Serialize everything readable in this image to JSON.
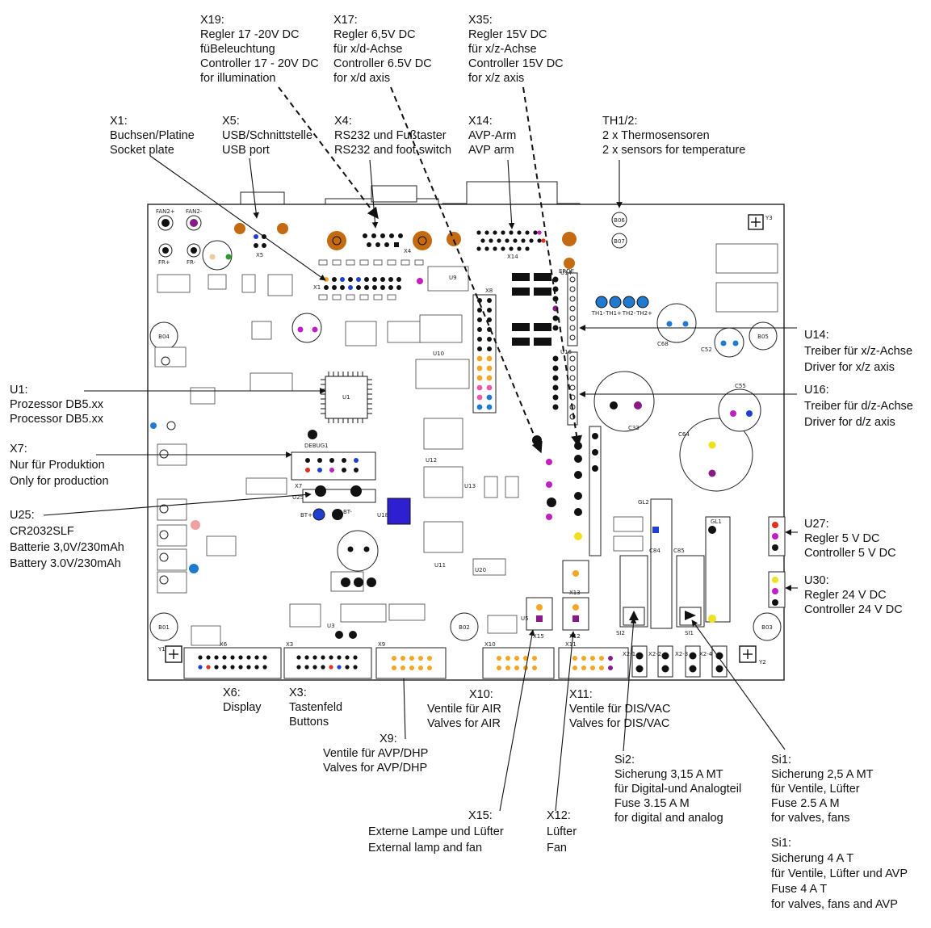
{
  "callouts": {
    "x19": [
      "X19:",
      "Regler 17 -20V DC",
      "füBeleuchtung",
      "Controller 17 - 20V DC",
      "for illumination"
    ],
    "x17": [
      "X17:",
      "Regler 6,5V DC",
      "für x/d-Achse",
      "Controller 6.5V DC",
      "for x/d axis"
    ],
    "x35": [
      "X35:",
      "Regler 15V DC",
      "für x/z-Achse",
      "Controller 15V DC",
      "for x/z axis"
    ],
    "x1": [
      "X1:",
      "Buchsen/Platine",
      "Socket plate"
    ],
    "x5": [
      "X5:",
      "USB/Schnittstelle",
      "USB port"
    ],
    "x4": [
      "X4:",
      "RS232 und Fußtaster",
      "RS232 and foot switch"
    ],
    "x14": [
      "X14:",
      "AVP-Arm",
      "AVP arm"
    ],
    "th12": [
      "TH1/2:",
      "2 x Thermosensoren",
      "2 x sensors for temperature"
    ],
    "u14": [
      "U14:",
      "Treiber für x/z-Achse",
      "Driver for x/z axis"
    ],
    "u16": [
      "U16:",
      "Treiber für d/z-Achse",
      "Driver for d/z axis"
    ],
    "u1": [
      "U1:",
      "Prozessor DB5.xx",
      "Processor DB5.xx"
    ],
    "x7": [
      "X7:",
      "Nur für Produktion",
      "Only for production"
    ],
    "u25": [
      "U25:",
      "CR2032SLF",
      "Batterie 3,0V/230mAh",
      "Battery 3.0V/230mAh"
    ],
    "u27": [
      "U27:",
      "Regler 5 V DC",
      "Controller 5 V DC"
    ],
    "u30": [
      "U30:",
      "Regler 24 V DC",
      "Controller 24 V DC"
    ],
    "x6": [
      "X6:",
      "Display"
    ],
    "x3": [
      "X3:",
      "Tastenfeld",
      "Buttons"
    ],
    "x10": [
      "X10:",
      "Ventile für AIR",
      "Valves for AIR"
    ],
    "x11": [
      "X11:",
      "Ventile für DIS/VAC",
      "Valves for DIS/VAC"
    ],
    "x9": [
      "X9:",
      "Ventile für AVP/DHP",
      "Valves for AVP/DHP"
    ],
    "si2": [
      "Si2:",
      "Sicherung 3,15 A MT",
      "für Digital-und Analogteil",
      "Fuse 3.15 A M",
      "for digital and analog"
    ],
    "si1a": [
      "Si1:",
      "Sicherung 2,5 A MT",
      "für Ventile, Lüfter",
      "Fuse 2.5 A M",
      "for valves, fans"
    ],
    "si1b": [
      "Si1:",
      "Sicherung 4 A T",
      "für Ventile, Lüfter und AVP",
      "Fuse 4 A T",
      "for valves, fans and AVP"
    ],
    "x15": [
      "X15:",
      "Externe Lampe und Lüfter",
      "External lamp and fan"
    ],
    "x12": [
      "X12:",
      "Lüfter",
      "Fan"
    ]
  },
  "board_labels": {
    "fan_plus": "FAN2+",
    "fan_minus": "FAN2-",
    "fr_plus": "FR+",
    "fr_minus": "FR-",
    "b01": "B01",
    "b02": "B02",
    "b03": "B03",
    "b04": "B04",
    "b05": "B05",
    "b06": "B06",
    "b07": "B07",
    "y1": "Y1",
    "y2": "Y2",
    "y3": "Y3",
    "u1": "U1",
    "u9": "U9",
    "u10": "U10",
    "u12": "U12",
    "u13": "U13",
    "u11": "U11",
    "u16": "U16",
    "u14": "U14",
    "u18": "U18",
    "u3": "U3",
    "u5": "U5",
    "u20": "U20",
    "x1": "X1",
    "x3": "X3",
    "x4": "X4",
    "x5": "X5",
    "x6": "X6",
    "x7": "X7",
    "x8": "X8",
    "x9": "X9",
    "x10": "X10",
    "x11": "X11",
    "x12": "X12",
    "x13": "X13",
    "x14": "X14",
    "x15": "X15",
    "si1": "SI1",
    "si2": "SI2",
    "gl1": "GL1",
    "gl2": "GL2",
    "c33": "C33",
    "c64": "C64",
    "c55": "C55",
    "c85": "C85",
    "c84": "C84",
    "c52": "C52",
    "c68": "C68",
    "x2_1": "X2-1",
    "x2_2": "X2-2",
    "x2_3": "X2-3",
    "x2_4": "X2-4",
    "th": [
      "TH1-",
      "TH1+",
      "TH2-",
      "TH2+"
    ],
    "debug": "DEBUG1",
    "bt_plus": "BT+",
    "bt_minus": "BT-",
    "u25": "U25",
    "erde": "ERDE"
  }
}
